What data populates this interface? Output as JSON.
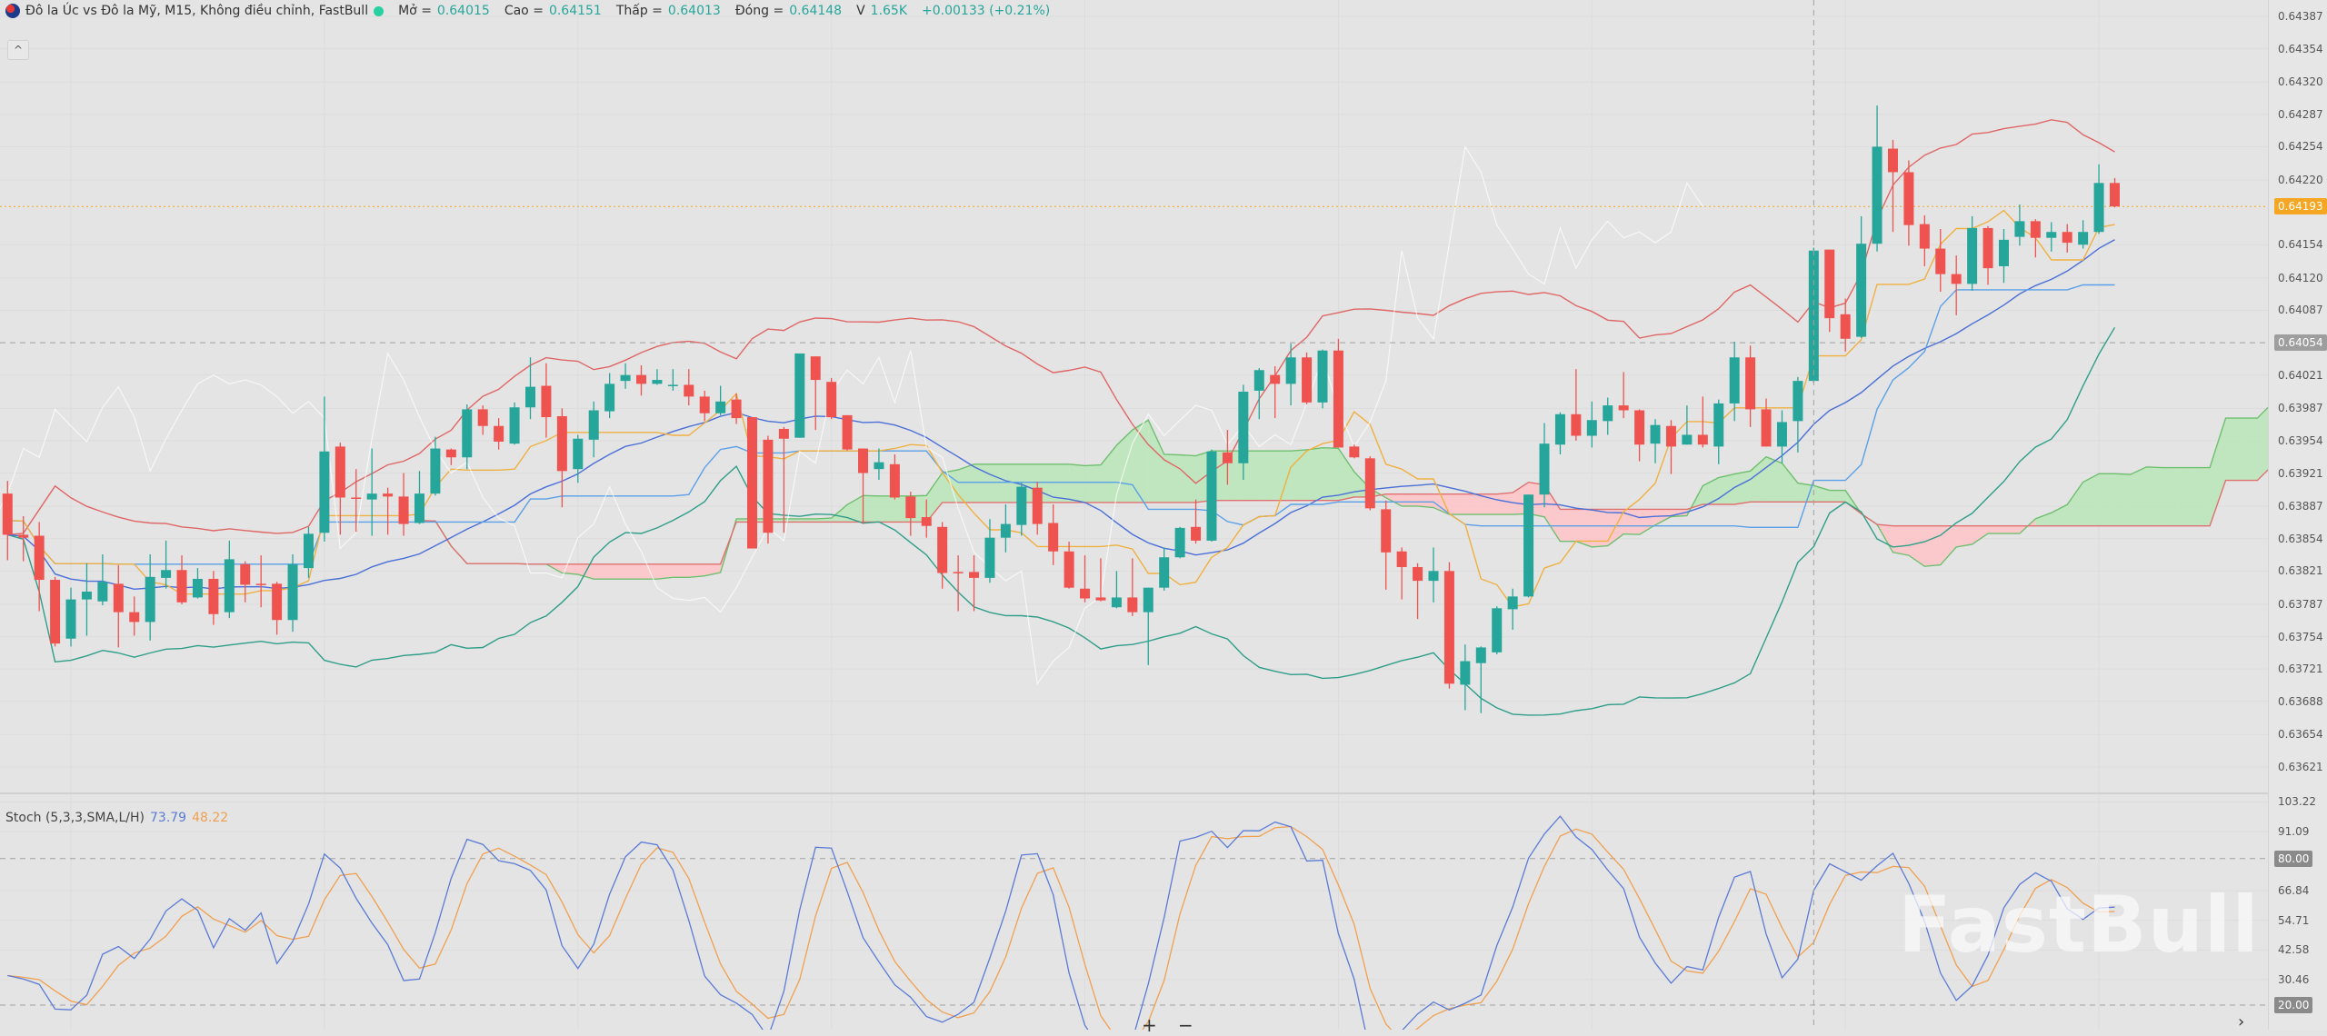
{
  "header": {
    "title": "Đô la Úc vs Đô la Mỹ, M15, Không điều chỉnh, FastBull",
    "open_label": "Mở =",
    "open": "0.64015",
    "high_label": "Cao =",
    "high": "0.64151",
    "low_label": "Thấp =",
    "low": "0.64013",
    "close_label": "Đóng =",
    "close": "0.64148",
    "volume_label": "V",
    "volume": "1.65K",
    "change": "+0.00133 (+0.21%)"
  },
  "collapse_icon": "^",
  "stoch": {
    "label": "Stoch (5,3,3,SMA,L/H)",
    "k": "73.79",
    "d": "48.22"
  },
  "price_axis": {
    "ticks": [
      "0.64387",
      "0.64354",
      "0.64320",
      "0.64287",
      "0.64254",
      "0.64220",
      "0.64154",
      "0.64120",
      "0.64087",
      "0.64021",
      "0.63987",
      "0.63954",
      "0.63921",
      "0.63887",
      "0.63854",
      "0.63821",
      "0.63787",
      "0.63754",
      "0.63721",
      "0.63688",
      "0.63654",
      "0.63621"
    ],
    "last_price_tag": "0.64193",
    "crosshair_tag": "0.64054"
  },
  "stoch_axis": {
    "ticks": [
      "103.22",
      "91.09",
      "66.84",
      "54.71",
      "42.58",
      "30.46"
    ],
    "upper_tag": "80.00",
    "lower_tag": "20.00"
  },
  "controls": {
    "zoom_in": "+",
    "zoom_out": "−",
    "scroll_right": "›"
  },
  "watermark": "FastBull",
  "colors": {
    "up": "#26a69a",
    "down": "#ef5350",
    "background": "#e4e4e4",
    "last_price": "#f5a623",
    "crosshair_tag": "#9e9e9e",
    "bb_upper": "#e06666",
    "bb_lower": "#2e9e88",
    "bb_mid": "#4a6fd8",
    "tenkan": "#f0b040",
    "kijun": "#5aa0e8",
    "cloud_up": "#b8e6b8",
    "cloud_down": "#ffc4c8",
    "stoch_k": "#5b7bd5",
    "stoch_d": "#f0a050"
  },
  "chart_data": {
    "type": "candlestick",
    "symbol": "Đô la Úc vs Đô la Mỹ",
    "timeframe": "M15",
    "ylim": [
      0.636,
      0.644
    ],
    "stoch_ylim": [
      0,
      103.22
    ],
    "stoch_levels": [
      20,
      80
    ],
    "last_price": 0.64193,
    "crosshair_price": 0.64054,
    "crosshair_index": 114,
    "ohlc_order": [
      "open",
      "high",
      "low",
      "close"
    ],
    "candles": [
      [
        0.639,
        0.63913,
        0.63832,
        0.63858
      ],
      [
        0.63858,
        0.63877,
        0.63831,
        0.63855
      ],
      [
        0.63857,
        0.63871,
        0.6378,
        0.63812
      ],
      [
        0.63812,
        0.63815,
        0.63744,
        0.63747
      ],
      [
        0.63752,
        0.63804,
        0.63744,
        0.63792
      ],
      [
        0.63792,
        0.63829,
        0.63755,
        0.638
      ],
      [
        0.6379,
        0.63838,
        0.63786,
        0.6381
      ],
      [
        0.63808,
        0.63827,
        0.63743,
        0.63779
      ],
      [
        0.63779,
        0.63795,
        0.63755,
        0.63769
      ],
      [
        0.63769,
        0.63838,
        0.6375,
        0.63815
      ],
      [
        0.63814,
        0.63852,
        0.63803,
        0.63822
      ],
      [
        0.63822,
        0.63837,
        0.63787,
        0.63789
      ],
      [
        0.63794,
        0.63824,
        0.63793,
        0.63813
      ],
      [
        0.63813,
        0.63821,
        0.63766,
        0.63777
      ],
      [
        0.63779,
        0.63852,
        0.63773,
        0.63833
      ],
      [
        0.63828,
        0.63831,
        0.63789,
        0.63807
      ],
      [
        0.63808,
        0.63837,
        0.63784,
        0.63807
      ],
      [
        0.63808,
        0.6381,
        0.63756,
        0.63771
      ],
      [
        0.63771,
        0.63838,
        0.63759,
        0.63828
      ],
      [
        0.63824,
        0.63866,
        0.63814,
        0.63859
      ],
      [
        0.6386,
        0.63999,
        0.63851,
        0.63943
      ],
      [
        0.63948,
        0.63952,
        0.63858,
        0.63896
      ],
      [
        0.63896,
        0.63925,
        0.63861,
        0.63895
      ],
      [
        0.63894,
        0.63946,
        0.63857,
        0.639
      ],
      [
        0.639,
        0.63906,
        0.63858,
        0.63897
      ],
      [
        0.63897,
        0.63921,
        0.63857,
        0.63869
      ],
      [
        0.6387,
        0.63923,
        0.63869,
        0.639
      ],
      [
        0.639,
        0.63958,
        0.63898,
        0.63946
      ],
      [
        0.63945,
        0.63946,
        0.63929,
        0.63937
      ],
      [
        0.63937,
        0.63991,
        0.63925,
        0.63986
      ],
      [
        0.63986,
        0.6399,
        0.6396,
        0.63969
      ],
      [
        0.63969,
        0.63977,
        0.63945,
        0.63953
      ],
      [
        0.63951,
        0.63993,
        0.6395,
        0.63988
      ],
      [
        0.63988,
        0.64039,
        0.63976,
        0.64009
      ],
      [
        0.6401,
        0.64033,
        0.63957,
        0.63978
      ],
      [
        0.63979,
        0.63987,
        0.63886,
        0.63923
      ],
      [
        0.63925,
        0.6396,
        0.63911,
        0.63956
      ],
      [
        0.63955,
        0.63994,
        0.63937,
        0.63985
      ],
      [
        0.63984,
        0.64023,
        0.63977,
        0.64012
      ],
      [
        0.64015,
        0.64033,
        0.64007,
        0.64021
      ],
      [
        0.64021,
        0.64031,
        0.64,
        0.64012
      ],
      [
        0.64012,
        0.64027,
        0.64011,
        0.64016
      ],
      [
        0.6401,
        0.64027,
        0.64005,
        0.64011
      ],
      [
        0.64011,
        0.64027,
        0.6399,
        0.63999
      ],
      [
        0.63999,
        0.64005,
        0.63974,
        0.63982
      ],
      [
        0.63982,
        0.6401,
        0.6398,
        0.63994
      ],
      [
        0.63996,
        0.64002,
        0.63971,
        0.63977
      ],
      [
        0.63978,
        0.63978,
        0.63844,
        0.63844
      ],
      [
        0.63955,
        0.63959,
        0.63849,
        0.6386
      ],
      [
        0.63966,
        0.63968,
        0.6386,
        0.63956
      ],
      [
        0.63957,
        0.64043,
        0.63957,
        0.64043
      ],
      [
        0.6404,
        0.6404,
        0.63965,
        0.64016
      ],
      [
        0.64014,
        0.64018,
        0.63976,
        0.63978
      ],
      [
        0.6398,
        0.6398,
        0.63944,
        0.63945
      ],
      [
        0.63946,
        0.63946,
        0.63869,
        0.63921
      ],
      [
        0.63925,
        0.63946,
        0.63914,
        0.63932
      ],
      [
        0.6393,
        0.6394,
        0.63894,
        0.63896
      ],
      [
        0.63897,
        0.63902,
        0.63857,
        0.63875
      ],
      [
        0.63876,
        0.63894,
        0.63855,
        0.63867
      ],
      [
        0.63866,
        0.63871,
        0.63803,
        0.63819
      ],
      [
        0.6382,
        0.63837,
        0.6378,
        0.63819
      ],
      [
        0.6382,
        0.63837,
        0.6378,
        0.63814
      ],
      [
        0.63814,
        0.63874,
        0.63809,
        0.63855
      ],
      [
        0.63855,
        0.63889,
        0.6384,
        0.63869
      ],
      [
        0.63868,
        0.63911,
        0.63857,
        0.63907
      ],
      [
        0.63906,
        0.63912,
        0.63858,
        0.63869
      ],
      [
        0.6387,
        0.63889,
        0.63827,
        0.63841
      ],
      [
        0.63841,
        0.63851,
        0.63803,
        0.63804
      ],
      [
        0.63803,
        0.63837,
        0.63789,
        0.63793
      ],
      [
        0.63794,
        0.63834,
        0.6379,
        0.63791
      ],
      [
        0.63784,
        0.63821,
        0.63783,
        0.63794
      ],
      [
        0.63794,
        0.63834,
        0.63775,
        0.63779
      ],
      [
        0.63779,
        0.63804,
        0.63725,
        0.63804
      ],
      [
        0.63804,
        0.63845,
        0.63801,
        0.63835
      ],
      [
        0.63835,
        0.63866,
        0.63834,
        0.63865
      ],
      [
        0.63866,
        0.63894,
        0.63849,
        0.63852
      ],
      [
        0.63852,
        0.63945,
        0.63851,
        0.63943
      ],
      [
        0.63942,
        0.63965,
        0.63909,
        0.63931
      ],
      [
        0.63931,
        0.64011,
        0.63914,
        0.64004
      ],
      [
        0.64005,
        0.64028,
        0.63976,
        0.64026
      ],
      [
        0.64021,
        0.6403,
        0.63977,
        0.64012
      ],
      [
        0.64012,
        0.64053,
        0.6399,
        0.64039
      ],
      [
        0.64039,
        0.64044,
        0.63991,
        0.63993
      ],
      [
        0.63993,
        0.64047,
        0.63987,
        0.64046
      ],
      [
        0.64046,
        0.64058,
        0.63947,
        0.63947
      ],
      [
        0.63948,
        0.6395,
        0.63936,
        0.63937
      ],
      [
        0.63936,
        0.63938,
        0.63883,
        0.63885
      ],
      [
        0.63884,
        0.63893,
        0.63802,
        0.6384
      ],
      [
        0.63841,
        0.63845,
        0.63792,
        0.63825
      ],
      [
        0.63825,
        0.63829,
        0.63772,
        0.63811
      ],
      [
        0.63811,
        0.63845,
        0.63789,
        0.63821
      ],
      [
        0.63821,
        0.6383,
        0.63701,
        0.63706
      ],
      [
        0.63705,
        0.63746,
        0.63679,
        0.63729
      ],
      [
        0.63727,
        0.63744,
        0.63676,
        0.63743
      ],
      [
        0.63738,
        0.63785,
        0.63736,
        0.63783
      ],
      [
        0.63782,
        0.63803,
        0.63761,
        0.63795
      ],
      [
        0.63795,
        0.63899,
        0.63794,
        0.63899
      ],
      [
        0.63899,
        0.63972,
        0.63886,
        0.63951
      ],
      [
        0.6395,
        0.63983,
        0.6394,
        0.63981
      ],
      [
        0.63981,
        0.64027,
        0.63954,
        0.63959
      ],
      [
        0.63959,
        0.63994,
        0.63947,
        0.63975
      ],
      [
        0.63974,
        0.63998,
        0.6396,
        0.6399
      ],
      [
        0.6399,
        0.64024,
        0.63977,
        0.63985
      ],
      [
        0.63985,
        0.63986,
        0.63933,
        0.6395
      ],
      [
        0.63951,
        0.63976,
        0.63931,
        0.6397
      ],
      [
        0.63969,
        0.63975,
        0.6392,
        0.63948
      ],
      [
        0.6395,
        0.6399,
        0.6395,
        0.6396
      ],
      [
        0.6396,
        0.63999,
        0.63947,
        0.6395
      ],
      [
        0.63948,
        0.63996,
        0.6393,
        0.63992
      ],
      [
        0.63992,
        0.64055,
        0.63974,
        0.64039
      ],
      [
        0.64039,
        0.64051,
        0.63968,
        0.63986
      ],
      [
        0.63986,
        0.63997,
        0.63948,
        0.63948
      ],
      [
        0.63948,
        0.63985,
        0.63931,
        0.63973
      ],
      [
        0.63974,
        0.64019,
        0.63942,
        0.64015
      ],
      [
        0.64015,
        0.64151,
        0.64013,
        0.64148
      ],
      [
        0.64149,
        0.64149,
        0.64065,
        0.64079
      ],
      [
        0.64083,
        0.64099,
        0.64045,
        0.64058
      ],
      [
        0.6406,
        0.64183,
        0.64059,
        0.64155
      ],
      [
        0.64155,
        0.64296,
        0.64147,
        0.64254
      ],
      [
        0.64252,
        0.64261,
        0.64167,
        0.64228
      ],
      [
        0.64228,
        0.6424,
        0.64153,
        0.64174
      ],
      [
        0.64175,
        0.64184,
        0.64132,
        0.6415
      ],
      [
        0.6415,
        0.6417,
        0.64106,
        0.64124
      ],
      [
        0.64124,
        0.64143,
        0.64082,
        0.64114
      ],
      [
        0.64114,
        0.64183,
        0.64107,
        0.64171
      ],
      [
        0.64171,
        0.64173,
        0.64113,
        0.6413
      ],
      [
        0.64132,
        0.6417,
        0.64115,
        0.64159
      ],
      [
        0.64162,
        0.64195,
        0.64153,
        0.64178
      ],
      [
        0.64178,
        0.6418,
        0.64141,
        0.64161
      ],
      [
        0.64161,
        0.64177,
        0.64147,
        0.64167
      ],
      [
        0.64167,
        0.64175,
        0.64146,
        0.64156
      ],
      [
        0.64154,
        0.64179,
        0.6415,
        0.64167
      ],
      [
        0.64167,
        0.64236,
        0.64165,
        0.64217
      ],
      [
        0.64217,
        0.64222,
        0.64192,
        0.64193
      ]
    ]
  }
}
